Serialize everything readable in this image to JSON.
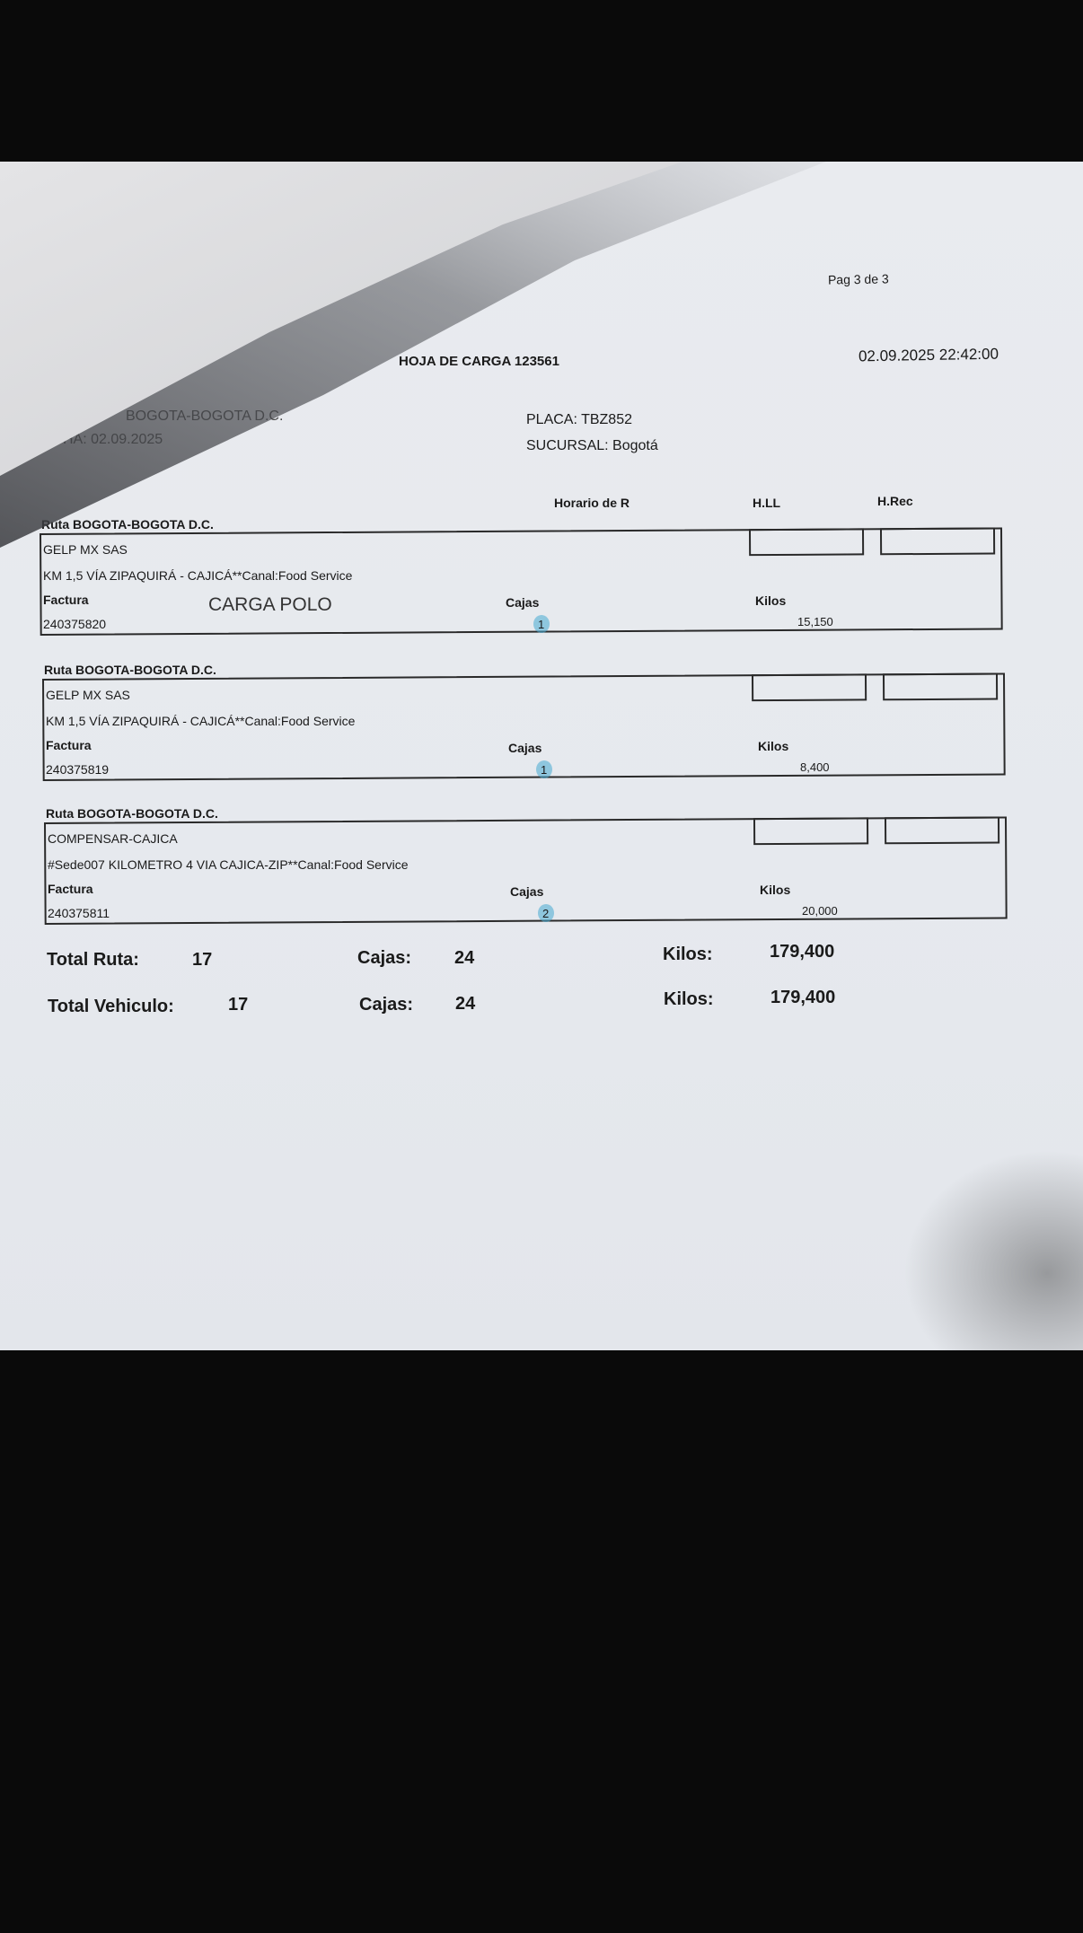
{
  "header": {
    "page": "Pag 3 de 3",
    "title": "HOJA DE CARGA 123561",
    "datetime": "02.09.2025 22:42:00",
    "ruta_partial": "BOGOTA-BOGOTA D.C.",
    "fecha_partial": "HA: 02.09.2025",
    "placa": "PLACA: TBZ852",
    "sucursal": "SUCURSAL: Bogotá"
  },
  "columns": {
    "horario": "Horario de R",
    "hll": "H.LL",
    "hrec": "H.Rec"
  },
  "handwritten_note": "CARGA POLO",
  "entries": [
    {
      "ruta": "Ruta BOGOTA-BOGOTA D.C.",
      "cliente": "GELP MX SAS",
      "direccion": "KM 1,5 VÍA ZIPAQUIRÁ - CAJICÁ**Canal:Food Service",
      "factura_label": "Factura",
      "cajas_label": "Cajas",
      "kilos_label": "Kilos",
      "factura": "240375820",
      "cajas": "1",
      "kilos": "15,150"
    },
    {
      "ruta": "Ruta BOGOTA-BOGOTA D.C.",
      "cliente": "GELP MX SAS",
      "direccion": "KM 1,5 VÍA ZIPAQUIRÁ - CAJICÁ**Canal:Food Service",
      "factura_label": "Factura",
      "cajas_label": "Cajas",
      "kilos_label": "Kilos",
      "factura": "240375819",
      "cajas": "1",
      "kilos": "8,400"
    },
    {
      "ruta": "Ruta BOGOTA-BOGOTA D.C.",
      "cliente": "COMPENSAR-CAJICA",
      "direccion": "#Sede007 KILOMETRO 4 VIA CAJICA-ZIP**Canal:Food Service",
      "factura_label": "Factura",
      "cajas_label": "Cajas",
      "kilos_label": "Kilos",
      "factura": "240375811",
      "cajas": "2",
      "kilos": "20,000"
    }
  ],
  "totals": {
    "ruta": {
      "label": "Total Ruta:",
      "count": "17",
      "cajas_label": "Cajas:",
      "cajas": "24",
      "kilos_label": "Kilos:",
      "kilos": "179,400"
    },
    "vehiculo": {
      "label": "Total Vehiculo:",
      "count": "17",
      "cajas_label": "Cajas:",
      "cajas": "24",
      "kilos_label": "Kilos:",
      "kilos": "179,400"
    }
  },
  "colors": {
    "highlighter": "#46aad2",
    "paper": "#e8eaee",
    "background": "#0a0a0a"
  }
}
